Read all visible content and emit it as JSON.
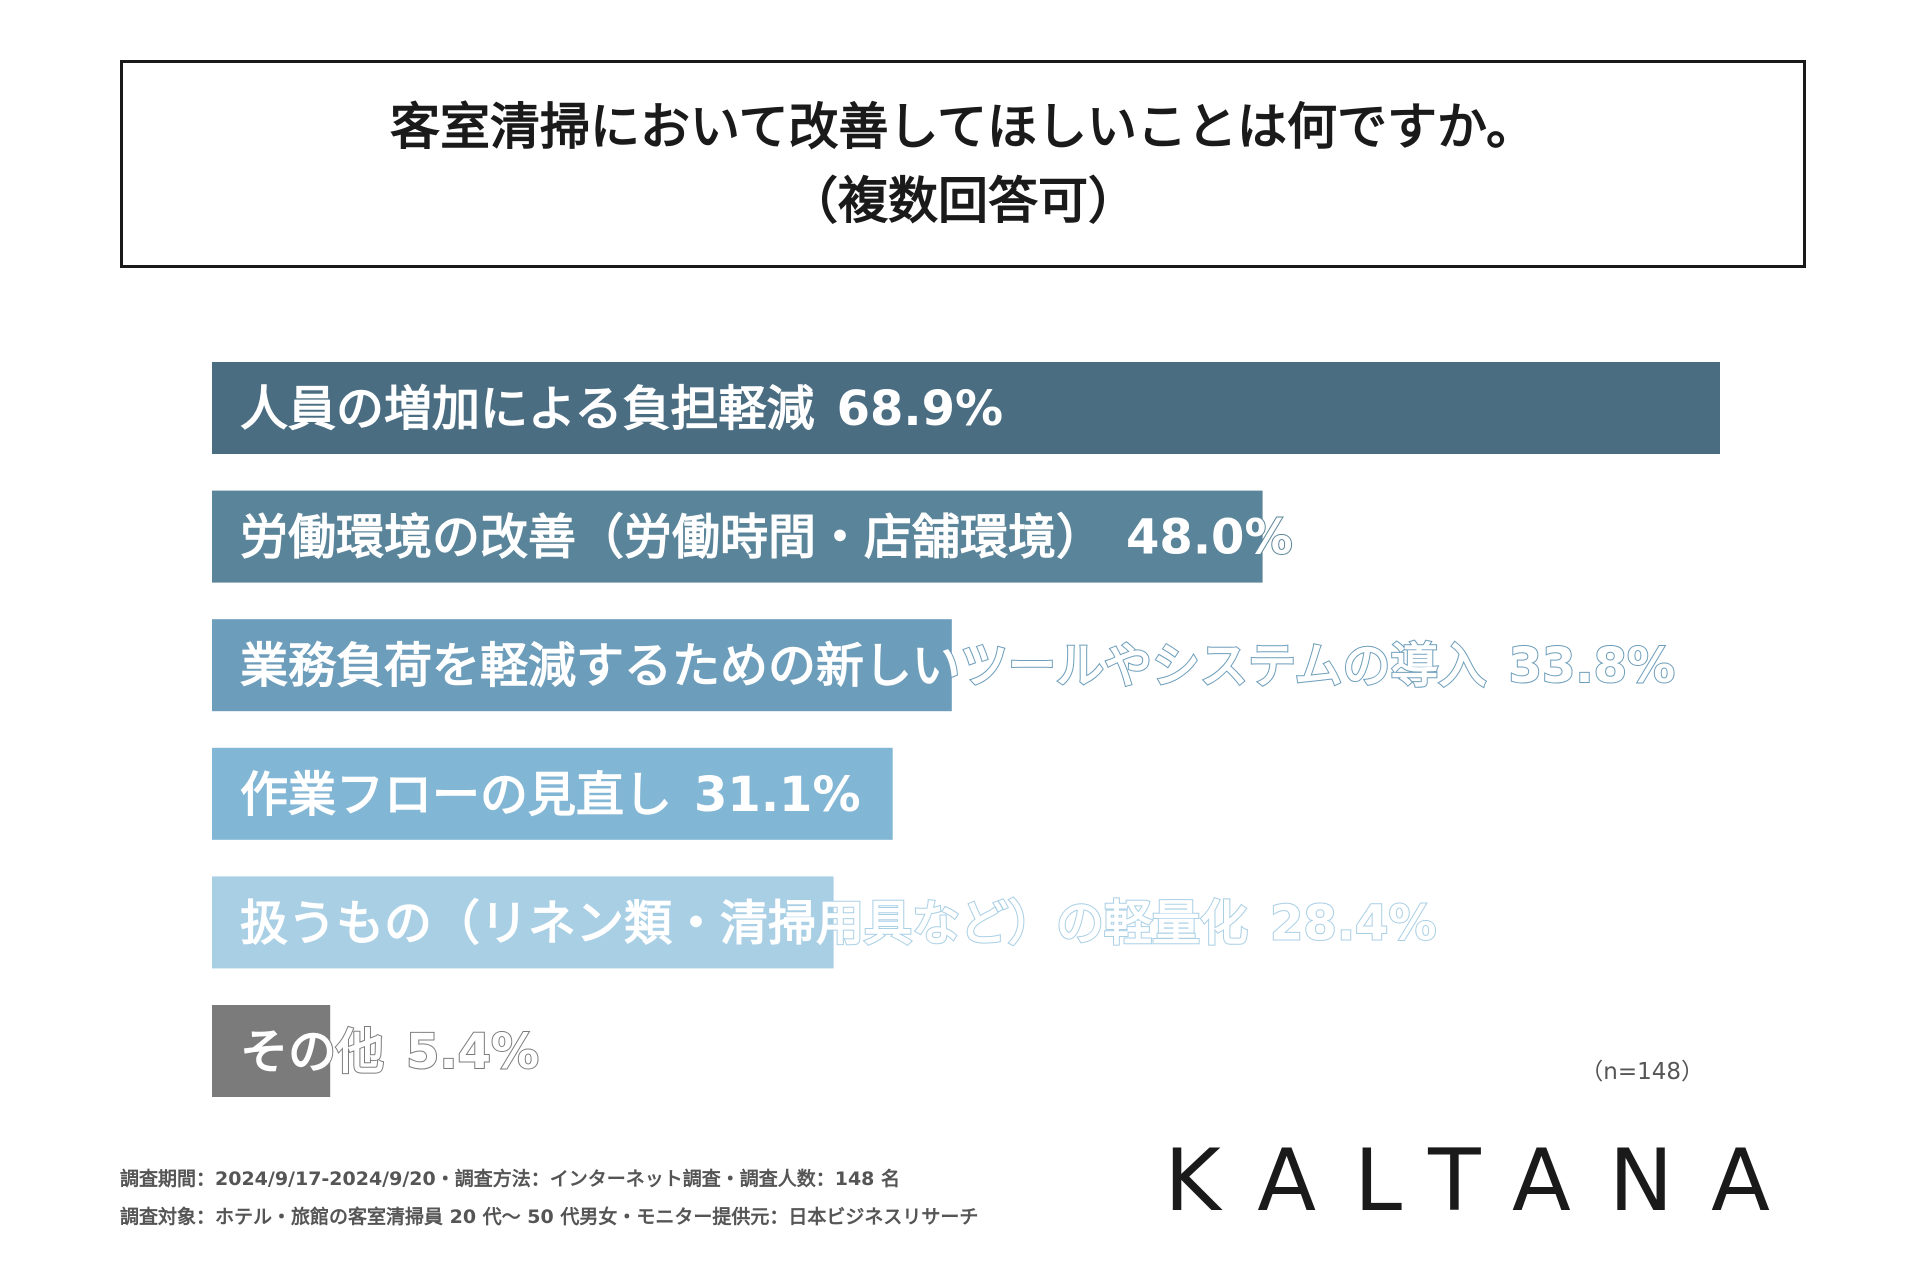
{
  "title": {
    "line1": "客室清掃において改善してほしいことは何ですか。",
    "line2": "（複数回答可）"
  },
  "chart_data": {
    "type": "bar",
    "orientation": "horizontal",
    "xlim": [
      0,
      68.9
    ],
    "categories": [
      "人員の増加による負担軽減",
      "労働環境の改善（労働時間・店舗環境）",
      "業務負荷を軽減するための新しいツールやシステムの導入",
      "作業フローの見直し",
      "扱うもの（リネン類・清掃用具など）の軽量化",
      "その他"
    ],
    "values": [
      68.9,
      48.0,
      33.8,
      31.1,
      28.4,
      5.4
    ],
    "value_labels": [
      "68.9%",
      "48.0%",
      "33.8%",
      "31.1%",
      "28.4%",
      "5.4%"
    ],
    "colors": [
      "#4a6d82",
      "#5a8499",
      "#6c9dba",
      "#82b6d5",
      "#a9cfe5",
      "#7b7b7b"
    ]
  },
  "sample_size": "（n=148）",
  "footer": {
    "line1": "調査期間：2024/9/17-2024/9/20・調査方法：インターネット調査・調査人数：148 名",
    "line2": "調査対象：ホテル・旅館の客室清掃員 20 代〜 50 代男女・モニター提供元：日本ビジネスリサーチ"
  },
  "logo_text": "KALTANA"
}
